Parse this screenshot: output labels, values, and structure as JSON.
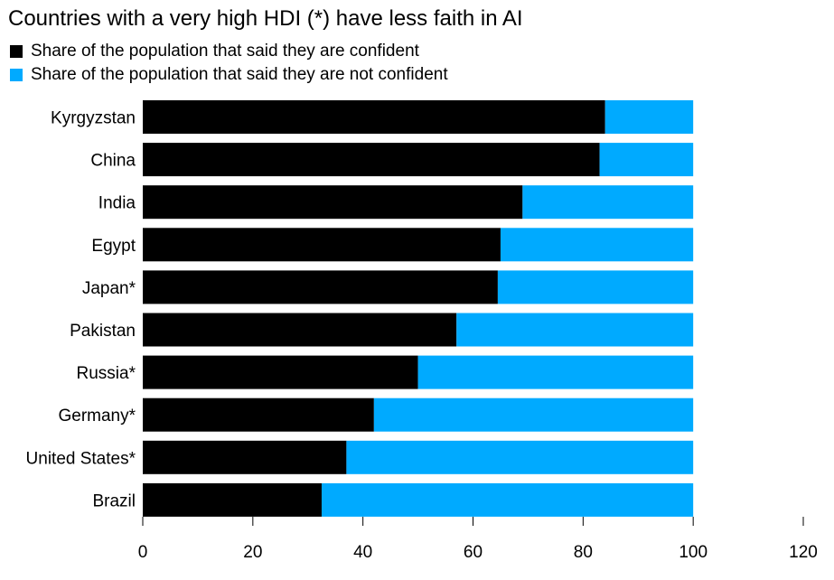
{
  "title": "Countries with a very high HDI (*) have less faith in AI",
  "colors": {
    "confident": "#000000",
    "not_confident": "#00aaff"
  },
  "chart_data": {
    "type": "bar",
    "orientation": "horizontal",
    "stacked": true,
    "categories": [
      "Kyrgyzstan",
      "China",
      "India",
      "Egypt",
      "Japan*",
      "Pakistan",
      "Russia*",
      "Germany*",
      "United States*",
      "Brazil"
    ],
    "series": [
      {
        "name": "Share of the population that said they are confident",
        "values": [
          84,
          83,
          69,
          65,
          64.5,
          57,
          50,
          42,
          37,
          32.5
        ]
      },
      {
        "name": "Share of the population that said they are not confident",
        "values": [
          16,
          17,
          31,
          35,
          35.5,
          43,
          50,
          58,
          63,
          67.5
        ]
      }
    ],
    "xlim": [
      0,
      120
    ],
    "xticks": [
      "0",
      "20",
      "40",
      "60",
      "80",
      "100",
      "120"
    ],
    "legend_position": "top-left",
    "grid": false
  }
}
